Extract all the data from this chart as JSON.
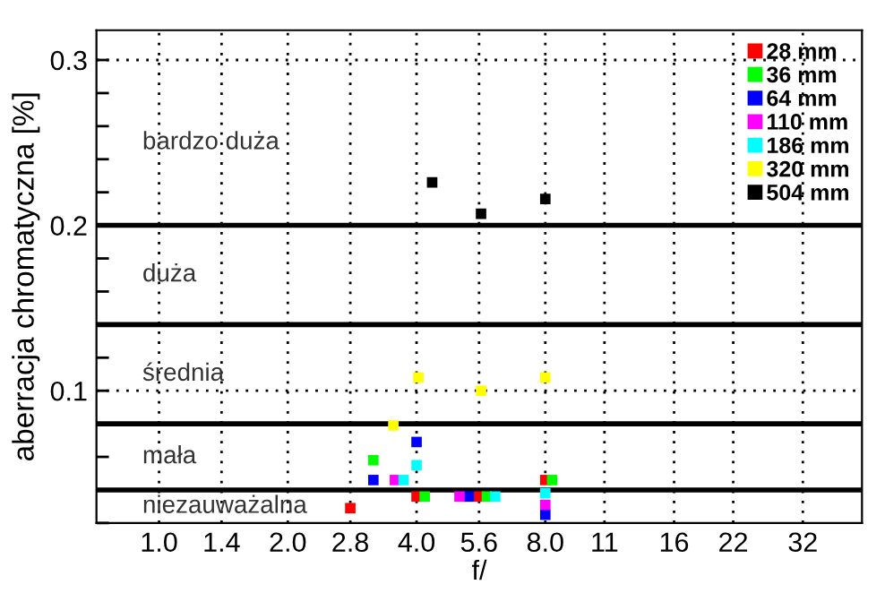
{
  "chart_data": {
    "type": "scatter",
    "xlabel": "f/",
    "ylabel": "aberracja chromatyczna [%]",
    "log": "x",
    "xlim": [
      0.714,
      44
    ],
    "ylim": [
      0.02,
      0.318
    ],
    "xticks": [
      {
        "value": 1,
        "label": "1.0"
      },
      1.4,
      {
        "value": 2,
        "label": "2.0"
      },
      2.8,
      {
        "value": 4,
        "label": "4.0"
      },
      5.6,
      {
        "value": 8,
        "label": "8.0"
      },
      11,
      16,
      22,
      32
    ],
    "yticks": [
      {
        "value": 0.02,
        "label": null
      },
      {
        "value": 0.04,
        "label": null
      },
      {
        "value": 0.06,
        "label": null
      },
      {
        "value": 0.08,
        "label": null
      },
      0.1,
      {
        "value": 0.12,
        "label": null
      },
      {
        "value": 0.14,
        "label": null
      },
      {
        "value": 0.16,
        "label": null
      },
      {
        "value": 0.18,
        "label": null
      },
      0.2,
      {
        "value": 0.22,
        "label": null
      },
      {
        "value": 0.24,
        "label": null
      },
      {
        "value": 0.26,
        "label": null
      },
      {
        "value": 0.28,
        "label": null
      },
      0.3
    ],
    "grid": "x",
    "legend": "top right",
    "marker": "square",
    "ref_lines": [
      {
        "axis": "y",
        "value": 0.04,
        "color": "#000000"
      },
      {
        "axis": "y",
        "value": 0.08,
        "color": "#000000"
      },
      {
        "axis": "y",
        "value": 0.14,
        "color": "#000000"
      },
      {
        "axis": "y",
        "value": 0.2,
        "color": "#000000"
      },
      {
        "axis": "y",
        "value": 0.1,
        "color": "#000000",
        "line_style": "dotted"
      },
      {
        "axis": "y",
        "value": 0.3,
        "color": "#000000",
        "line_style": "dotted"
      }
    ],
    "annotations": [
      "bardzo duża",
      "duża",
      "średnia",
      "mała",
      "niezauważalna"
    ],
    "series": [
      {
        "name": "28 mm",
        "color": "#ff0000",
        "x": [
          2.8,
          4.0,
          5.6,
          8.0
        ],
        "values": [
          0.029,
          0.036,
          0.036,
          0.046
        ]
      },
      {
        "name": "36 mm",
        "color": "#00ff00",
        "x": [
          3.17,
          4.18,
          5.84,
          8.3
        ],
        "values": [
          0.058,
          0.036,
          0.036,
          0.046
        ]
      },
      {
        "name": "64 mm",
        "color": "#0000ff",
        "x": [
          3.17,
          4.0,
          5.3,
          8.0
        ],
        "values": [
          0.046,
          0.069,
          0.036,
          0.025
        ]
      },
      {
        "name": "110 mm",
        "color": "#ff00ff",
        "x": [
          3.56,
          5.04,
          8.0
        ],
        "values": [
          0.046,
          0.036,
          0.031
        ]
      },
      {
        "name": "186 mm",
        "color": "#00ffff",
        "x": [
          3.73,
          4.0,
          6.11,
          8.0
        ],
        "values": [
          0.046,
          0.055,
          0.036,
          0.038
        ]
      },
      {
        "name": "320 mm",
        "color": "#ffff00",
        "x": [
          3.53,
          4.04,
          5.66,
          8.0
        ],
        "values": [
          0.079,
          0.108,
          0.1,
          0.108
        ]
      },
      {
        "name": "504 mm",
        "color": "#000000",
        "x": [
          4.35,
          5.66,
          8.0
        ],
        "values": [
          0.226,
          0.207,
          0.216
        ]
      }
    ]
  }
}
